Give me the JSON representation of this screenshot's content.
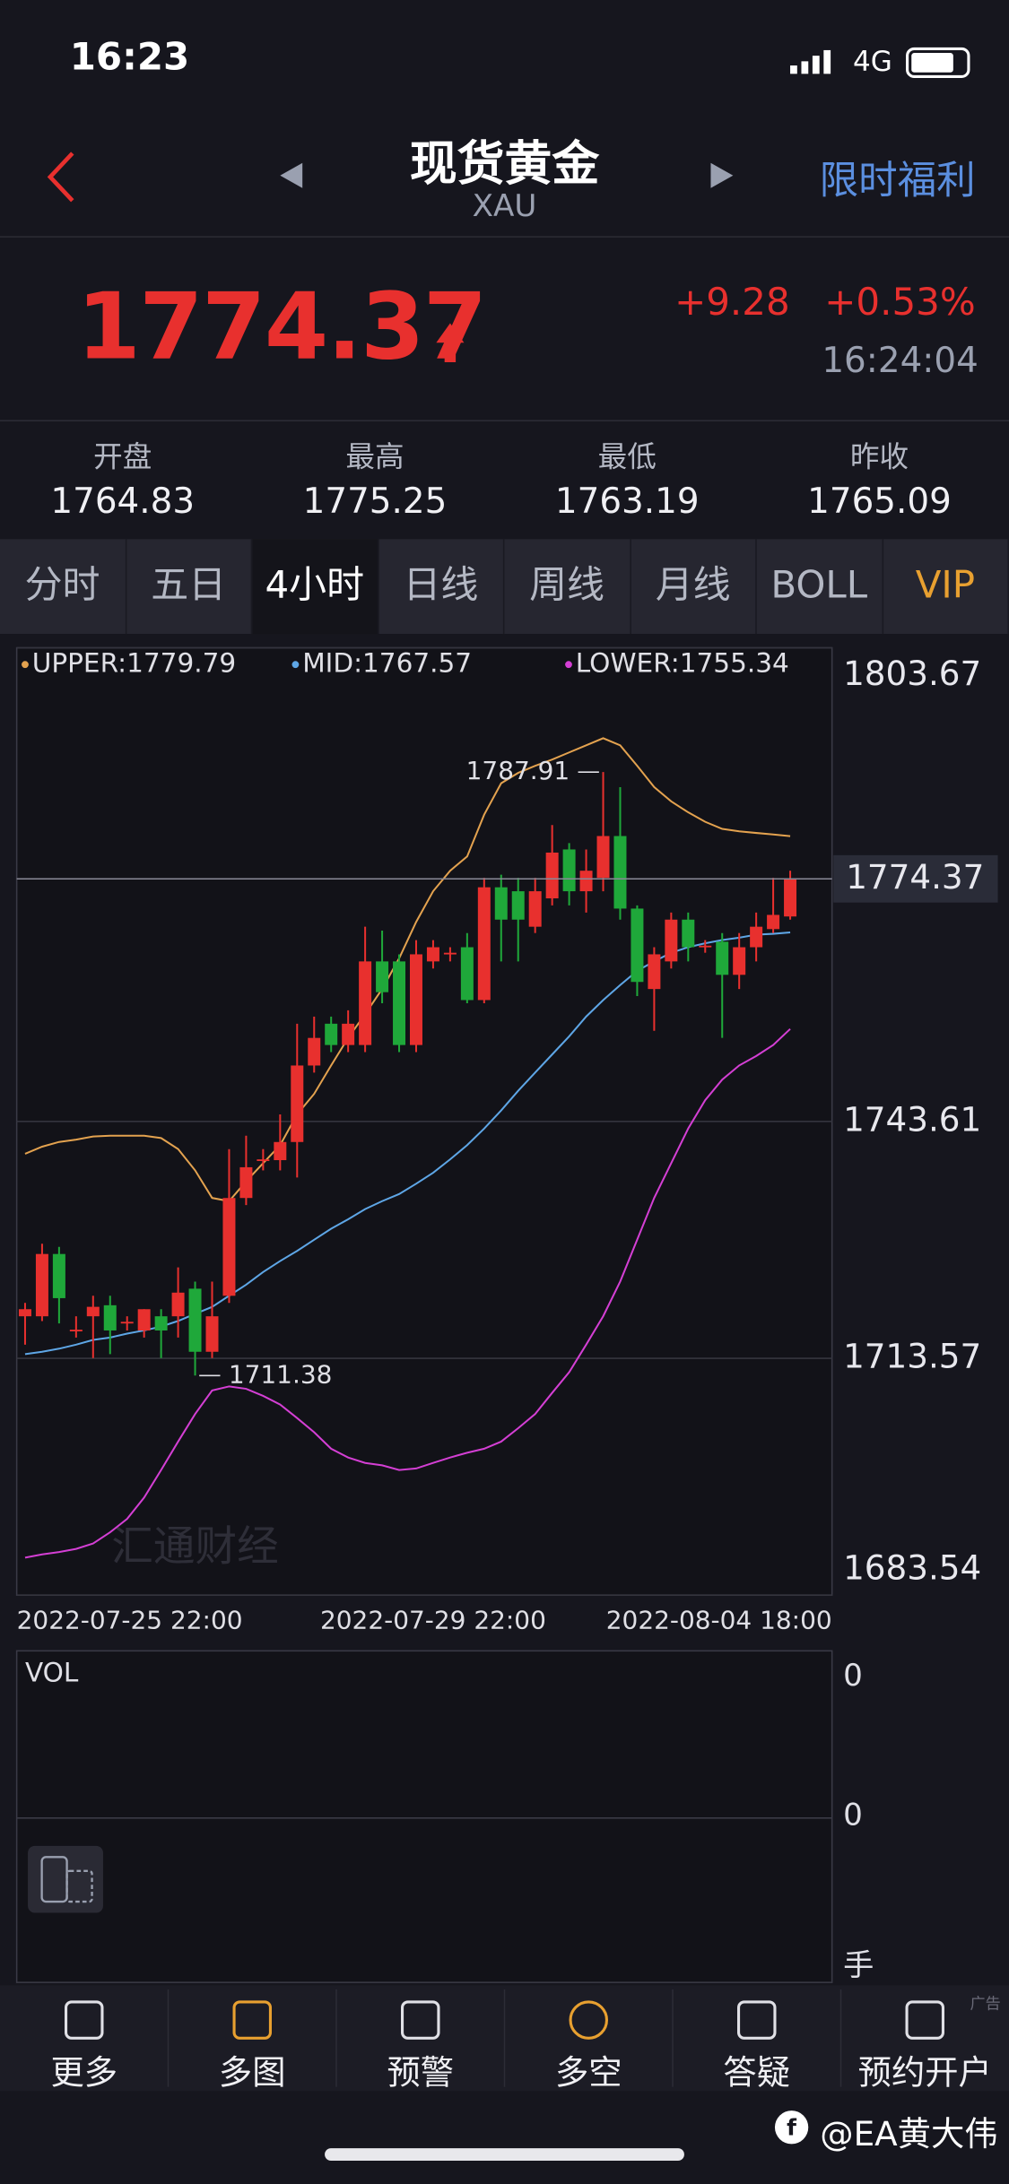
{
  "status_bar": {
    "time": "16:23",
    "network": "4G"
  },
  "header": {
    "title": "现货黄金",
    "subtitle": "XAU",
    "promo": "限时福利"
  },
  "quote": {
    "price": "1774.37",
    "change": "+9.28",
    "change_pct": "+0.53%",
    "time": "16:24:04"
  },
  "stats": [
    {
      "label": "开盘",
      "value": "1764.83"
    },
    {
      "label": "最高",
      "value": "1775.25"
    },
    {
      "label": "最低",
      "value": "1763.19"
    },
    {
      "label": "昨收",
      "value": "1765.09"
    }
  ],
  "tabs": [
    {
      "label": "分时",
      "selected": false
    },
    {
      "label": "五日",
      "selected": false
    },
    {
      "label": "4小时",
      "selected": true
    },
    {
      "label": "日线",
      "selected": false
    },
    {
      "label": "周线",
      "selected": false
    },
    {
      "label": "月线",
      "selected": false
    },
    {
      "label": "BOLL",
      "selected": false
    },
    {
      "label": "VIP",
      "selected": false
    }
  ],
  "chart_data": {
    "type": "candlestick",
    "categories": [
      "2022-07-25 22:00",
      null,
      null,
      null,
      null,
      null,
      null,
      null,
      null,
      null,
      null,
      null,
      null,
      null,
      null,
      null,
      null,
      null,
      null,
      null,
      null,
      null,
      null,
      null,
      "2022-07-29 22:00",
      null,
      null,
      null,
      null,
      null,
      null,
      null,
      null,
      null,
      null,
      null,
      null,
      null,
      null,
      null,
      null,
      null,
      null,
      null,
      null,
      "2022-08-04 18:00"
    ],
    "open": [
      1718.9,
      1718.9,
      1726.8,
      1717.1,
      1718.9,
      1720.3,
      1718.0,
      1717.1,
      1718.9,
      1718.9,
      1722.4,
      1714.4,
      1721.5,
      1733.9,
      1738.7,
      1738.7,
      1741.0,
      1750.7,
      1756.0,
      1753.3,
      1753.3,
      1763.9,
      1763.9,
      1753.3,
      1763.9,
      1764.8,
      1765.7,
      1759.0,
      1773.3,
      1772.8,
      1768.3,
      1771.9,
      1778.1,
      1772.8,
      1774.5,
      1779.8,
      1770.6,
      1760.4,
      1763.9,
      1769.2,
      1765.7,
      1766.4,
      1762.2,
      1765.7,
      1768.0,
      1769.6
    ],
    "high": [
      1720.6,
      1728.1,
      1727.7,
      1718.9,
      1721.5,
      1721.5,
      1718.9,
      1719.8,
      1719.8,
      1725.1,
      1723.3,
      1723.3,
      1740.1,
      1741.8,
      1740.1,
      1744.5,
      1756.0,
      1756.9,
      1756.9,
      1757.7,
      1768.3,
      1767.8,
      1764.8,
      1766.6,
      1766.6,
      1765.7,
      1767.5,
      1774.5,
      1774.9,
      1774.5,
      1774.5,
      1781.2,
      1778.9,
      1778.1,
      1787.91,
      1786.0,
      1771.0,
      1765.7,
      1770.1,
      1770.1,
      1766.6,
      1767.5,
      1767.5,
      1770.1,
      1774.5,
      1775.4
    ],
    "low": [
      1715.3,
      1718.3,
      1718.0,
      1716.2,
      1713.6,
      1714.1,
      1717.1,
      1716.2,
      1713.6,
      1716.2,
      1711.38,
      1713.6,
      1720.6,
      1733.0,
      1737.4,
      1737.4,
      1736.5,
      1749.8,
      1752.4,
      1752.4,
      1752.4,
      1758.6,
      1752.4,
      1752.4,
      1763.0,
      1763.9,
      1758.6,
      1758.6,
      1763.9,
      1763.9,
      1767.5,
      1771.0,
      1771.0,
      1770.1,
      1772.8,
      1769.2,
      1759.5,
      1755.1,
      1763.0,
      1763.9,
      1765.0,
      1754.2,
      1760.4,
      1763.9,
      1767.5,
      1769.2
    ],
    "close": [
      1719.8,
      1726.8,
      1721.2,
      1717.2,
      1720.1,
      1717.1,
      1718.2,
      1719.8,
      1717.1,
      1721.9,
      1714.4,
      1718.9,
      1733.9,
      1737.8,
      1738.8,
      1741.0,
      1750.7,
      1754.2,
      1753.3,
      1756.0,
      1763.9,
      1760.0,
      1753.3,
      1764.8,
      1765.7,
      1765.0,
      1759.0,
      1773.3,
      1769.2,
      1769.2,
      1772.8,
      1777.7,
      1772.8,
      1775.4,
      1779.8,
      1770.6,
      1761.3,
      1764.8,
      1769.2,
      1765.7,
      1765.9,
      1762.2,
      1765.7,
      1768.3,
      1769.8,
      1774.37
    ],
    "up_color": "#e8302e",
    "down_color": "#1fa83a",
    "series": [
      {
        "name": "UPPER:1779.79",
        "color": "#e3a24f",
        "values": [
          1739.5,
          1740.4,
          1741.0,
          1741.3,
          1741.7,
          1741.8,
          1741.8,
          1741.8,
          1741.5,
          1740.1,
          1737.4,
          1733.9,
          1733.5,
          1736.0,
          1738.3,
          1740.6,
          1744.5,
          1747.1,
          1750.7,
          1754.2,
          1757.2,
          1760.4,
          1764.3,
          1768.9,
          1772.8,
          1775.4,
          1777.2,
          1782.5,
          1786.5,
          1787.8,
          1788.7,
          1789.5,
          1790.4,
          1791.3,
          1792.2,
          1791.3,
          1788.7,
          1786.0,
          1784.2,
          1782.8,
          1781.6,
          1780.7,
          1780.4,
          1780.2,
          1780.0,
          1779.79
        ]
      },
      {
        "name": "MID:1767.57",
        "color": "#5ea6e6",
        "values": [
          1714.1,
          1714.4,
          1714.8,
          1715.3,
          1715.9,
          1716.2,
          1716.7,
          1717.1,
          1717.6,
          1718.3,
          1719.2,
          1720.1,
          1721.5,
          1722.9,
          1724.5,
          1725.9,
          1727.2,
          1728.6,
          1730.0,
          1731.2,
          1732.5,
          1733.5,
          1734.4,
          1735.7,
          1737.1,
          1738.8,
          1740.6,
          1742.7,
          1745.0,
          1747.5,
          1749.8,
          1752.1,
          1754.4,
          1756.9,
          1759.0,
          1760.9,
          1762.7,
          1763.9,
          1765.0,
          1765.7,
          1766.2,
          1766.6,
          1766.9,
          1767.3,
          1767.4,
          1767.57
        ]
      },
      {
        "name": "LOWER:1755.34",
        "color": "#d43fd4",
        "values": [
          1688.3,
          1688.7,
          1689.0,
          1689.4,
          1690.1,
          1691.5,
          1693.2,
          1695.9,
          1699.4,
          1703.0,
          1706.5,
          1709.5,
          1710.0,
          1709.7,
          1708.8,
          1707.7,
          1706.0,
          1704.2,
          1702.1,
          1701.0,
          1700.3,
          1700.0,
          1699.4,
          1699.6,
          1700.3,
          1701.0,
          1701.6,
          1702.1,
          1703.0,
          1704.7,
          1706.5,
          1709.2,
          1711.8,
          1715.3,
          1718.9,
          1723.3,
          1728.6,
          1733.9,
          1738.3,
          1742.7,
          1746.3,
          1748.9,
          1750.7,
          1751.9,
          1753.3,
          1755.34
        ]
      }
    ],
    "ylim": [
      1683.54,
      1803.67
    ],
    "yticks": [
      1803.67,
      1743.61,
      1713.57,
      1683.54
    ],
    "grid": true,
    "watermark": "汇通财经"
  },
  "volume_panel": {
    "title": "VOL",
    "labels": [
      "0",
      "0",
      "手"
    ]
  },
  "nav": [
    "更多",
    "多图",
    "预警",
    "多空",
    "答疑",
    "预约开户"
  ],
  "ad": "广告",
  "footer": "@EA黄大伟"
}
